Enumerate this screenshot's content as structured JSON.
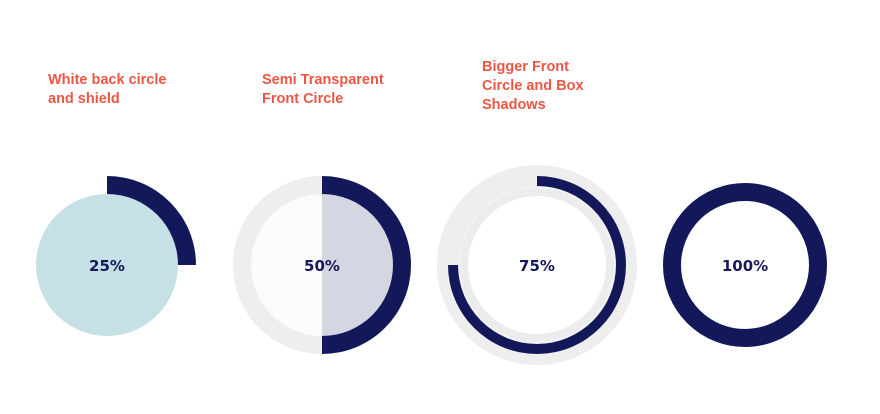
{
  "colors": {
    "label": "#ec5645",
    "navy": "#12185a",
    "light_blue": "#c5e1e6",
    "track_gray": "#eeeeee",
    "semi_transparent": "#d4d6e2"
  },
  "examples": [
    {
      "title": "White back circle\nand shield",
      "percent_label": "25%",
      "value": 25
    },
    {
      "title": "Semi Transparent\nFront Circle",
      "percent_label": "50%",
      "value": 50
    },
    {
      "title": "Bigger Front\nCircle and Box\nShadows",
      "percent_label": "75%",
      "value": 75
    },
    {
      "title": "",
      "percent_label": "100%",
      "value": 100
    }
  ]
}
